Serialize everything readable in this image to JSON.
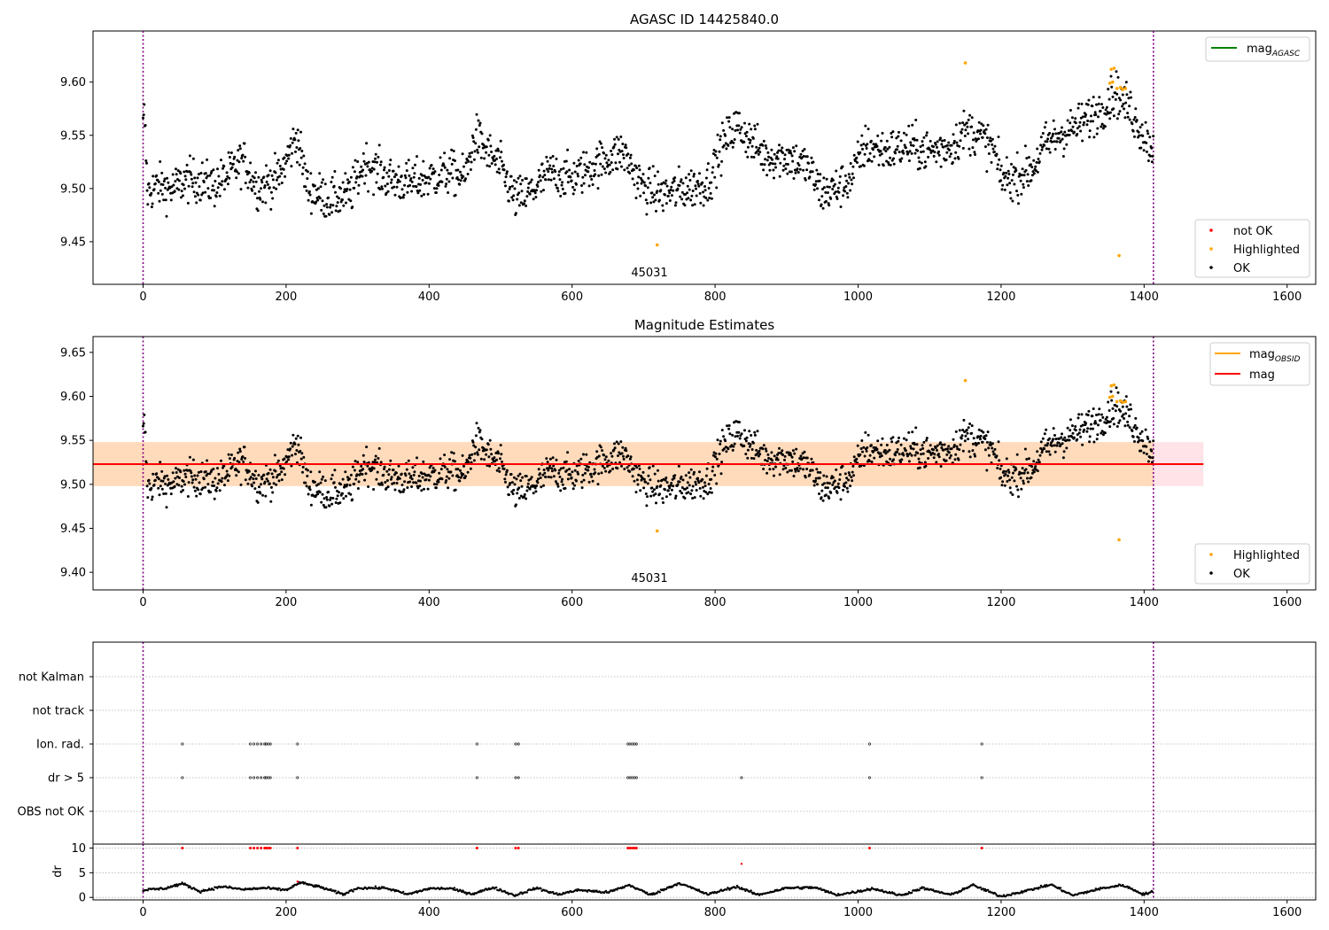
{
  "figure": {
    "colors": {
      "ok": "#000000",
      "highlighted": "#ffa500",
      "not_ok": "#ff0000",
      "agasc_line": "#008000",
      "obsid_line": "#ffa500",
      "mag_line": "#ff0000",
      "vline": "#800080",
      "band_outer": "#ffc0cb",
      "band_inner": "#ffd8b0"
    }
  },
  "chart_data": [
    {
      "type": "scatter",
      "title": "AGASC ID 14425840.0",
      "xlabel": "",
      "ylabel": "",
      "xlim": [
        -70,
        1640
      ],
      "ylim": [
        9.41,
        9.648
      ],
      "xticks": [
        "0",
        "200",
        "400",
        "600",
        "800",
        "1000",
        "1200",
        "1400",
        "1600"
      ],
      "yticks": [
        "9.45",
        "9.50",
        "9.55",
        "9.60"
      ],
      "grid": false,
      "vlines": [
        0,
        1413
      ],
      "annotation": {
        "text": "45031",
        "x": 706,
        "y": 9.414
      },
      "legend_lines": [
        {
          "label": "mag",
          "sub": "AGASC",
          "color": "#008000"
        }
      ],
      "legend_lines_position": "top-right",
      "legend_markers": [
        {
          "label": "not OK",
          "color": "#ff0000"
        },
        {
          "label": "Highlighted",
          "color": "#ffa500"
        },
        {
          "label": "OK",
          "color": "#000000"
        }
      ],
      "legend_markers_position": "bottom-right",
      "series": [
        {
          "name": "Highlighted",
          "points": [
            [
              719,
              9.447
            ],
            [
              1150,
              9.618
            ],
            [
              1352,
              9.599
            ],
            [
              1354,
              9.612
            ],
            [
              1356,
              9.6
            ],
            [
              1358,
              9.613
            ],
            [
              1362,
              9.594
            ],
            [
              1365,
              9.437
            ],
            [
              1367,
              9.595
            ],
            [
              1370,
              9.593
            ],
            [
              1374,
              9.594
            ]
          ]
        },
        {
          "name": "OK",
          "anchors": [
            [
              0,
              9.556
            ],
            [
              2,
              9.571
            ],
            [
              6,
              9.496
            ],
            [
              20,
              9.503
            ],
            [
              40,
              9.499
            ],
            [
              60,
              9.508
            ],
            [
              80,
              9.507
            ],
            [
              100,
              9.503
            ],
            [
              120,
              9.513
            ],
            [
              140,
              9.527
            ],
            [
              160,
              9.501
            ],
            [
              190,
              9.51
            ],
            [
              215,
              9.55
            ],
            [
              230,
              9.5
            ],
            [
              260,
              9.49
            ],
            [
              290,
              9.495
            ],
            [
              310,
              9.525
            ],
            [
              340,
              9.51
            ],
            [
              370,
              9.505
            ],
            [
              400,
              9.51
            ],
            [
              430,
              9.515
            ],
            [
              450,
              9.51
            ],
            [
              465,
              9.55
            ],
            [
              480,
              9.535
            ],
            [
              500,
              9.52
            ],
            [
              520,
              9.49
            ],
            [
              540,
              9.495
            ],
            [
              570,
              9.515
            ],
            [
              600,
              9.51
            ],
            [
              640,
              9.525
            ],
            [
              670,
              9.535
            ],
            [
              700,
              9.5
            ],
            [
              730,
              9.495
            ],
            [
              760,
              9.5
            ],
            [
              790,
              9.505
            ],
            [
              810,
              9.54
            ],
            [
              830,
              9.56
            ],
            [
              850,
              9.545
            ],
            [
              870,
              9.53
            ],
            [
              900,
              9.53
            ],
            [
              930,
              9.52
            ],
            [
              950,
              9.495
            ],
            [
              970,
              9.5
            ],
            [
              990,
              9.51
            ],
            [
              1010,
              9.54
            ],
            [
              1040,
              9.535
            ],
            [
              1070,
              9.54
            ],
            [
              1100,
              9.535
            ],
            [
              1130,
              9.54
            ],
            [
              1150,
              9.555
            ],
            [
              1170,
              9.55
            ],
            [
              1190,
              9.535
            ],
            [
              1200,
              9.51
            ],
            [
              1220,
              9.51
            ],
            [
              1245,
              9.52
            ],
            [
              1260,
              9.54
            ],
            [
              1280,
              9.55
            ],
            [
              1310,
              9.56
            ],
            [
              1340,
              9.575
            ],
            [
              1360,
              9.59
            ],
            [
              1380,
              9.575
            ],
            [
              1395,
              9.555
            ],
            [
              1405,
              9.545
            ],
            [
              1413,
              9.535
            ]
          ],
          "scatter": 0.014
        }
      ]
    },
    {
      "type": "scatter",
      "title": "Magnitude Estimates",
      "xlabel": "",
      "ylabel": "",
      "xlim": [
        -70,
        1640
      ],
      "ylim": [
        9.38,
        9.668
      ],
      "xticks": [
        "0",
        "200",
        "400",
        "600",
        "800",
        "1000",
        "1200",
        "1400",
        "1600"
      ],
      "yticks": [
        "9.40",
        "9.45",
        "9.50",
        "9.55",
        "9.60",
        "9.65"
      ],
      "grid": false,
      "vlines": [
        0,
        1413
      ],
      "hline": {
        "y": 9.523,
        "x": [
          -70,
          1483
        ],
        "color": "#ff0000"
      },
      "band": {
        "y": [
          9.498,
          9.548
        ],
        "x": [
          -70,
          1483
        ]
      },
      "annotation": {
        "text": "45031",
        "x": 706,
        "y": 9.385
      },
      "legend_lines": [
        {
          "label": "mag",
          "sub": "OBSID",
          "color": "#ffa500"
        },
        {
          "label": "mag",
          "sub": "",
          "color": "#ff0000"
        }
      ],
      "legend_lines_position": "top-right",
      "legend_markers": [
        {
          "label": "Highlighted",
          "color": "#ffa500"
        },
        {
          "label": "OK",
          "color": "#000000"
        }
      ],
      "legend_markers_position": "bottom-right"
    },
    {
      "type": "scatter",
      "title": "",
      "xlabel": "",
      "ylabel": "",
      "xlim": [
        -70,
        1640
      ],
      "categories": [
        "OBS not OK",
        "dr > 5",
        "Ion. rad.",
        "not track",
        "not Kalman"
      ],
      "grid": true,
      "vlines": [
        0,
        1413
      ],
      "flag_points": {
        "Ion. rad.": [
          55,
          150,
          155,
          160,
          165,
          170,
          172,
          175,
          178,
          216,
          467,
          521,
          525,
          678,
          681,
          684,
          687,
          690,
          1016,
          1173
        ],
        "dr > 5": [
          55,
          150,
          155,
          160,
          165,
          170,
          172,
          175,
          178,
          216,
          467,
          521,
          525,
          678,
          681,
          684,
          687,
          690,
          837,
          1016,
          1173
        ]
      }
    },
    {
      "type": "scatter",
      "title": "",
      "xlabel": "",
      "ylabel": "dr",
      "xlim": [
        -70,
        1640
      ],
      "ylim": [
        -0.5,
        10.8
      ],
      "xticks": [
        "0",
        "200",
        "400",
        "600",
        "800",
        "1000",
        "1200",
        "1400",
        "1600"
      ],
      "yticks": [
        "0",
        "5",
        "10"
      ],
      "grid": true,
      "vlines": [
        0,
        1413
      ],
      "red_at_10": [
        55,
        150,
        155,
        160,
        165,
        170,
        172,
        175,
        178,
        216,
        467,
        521,
        525,
        678,
        681,
        684,
        687,
        690,
        1016,
        1173
      ],
      "red_other": [
        [
          837,
          6.8
        ],
        [
          216,
          3.2
        ]
      ],
      "black_anchors": [
        [
          0,
          1.5
        ],
        [
          30,
          1.8
        ],
        [
          55,
          2.8
        ],
        [
          80,
          1.2
        ],
        [
          110,
          2.2
        ],
        [
          140,
          1.6
        ],
        [
          170,
          1.9
        ],
        [
          200,
          1.5
        ],
        [
          220,
          3.0
        ],
        [
          250,
          2.0
        ],
        [
          280,
          0.6
        ],
        [
          300,
          1.9
        ],
        [
          340,
          1.9
        ],
        [
          370,
          0.6
        ],
        [
          400,
          1.8
        ],
        [
          430,
          1.8
        ],
        [
          460,
          0.7
        ],
        [
          490,
          2.0
        ],
        [
          520,
          0.4
        ],
        [
          550,
          1.9
        ],
        [
          580,
          0.6
        ],
        [
          610,
          1.5
        ],
        [
          650,
          1.0
        ],
        [
          680,
          2.5
        ],
        [
          710,
          0.5
        ],
        [
          750,
          2.9
        ],
        [
          790,
          0.6
        ],
        [
          830,
          2.2
        ],
        [
          860,
          0.5
        ],
        [
          900,
          1.9
        ],
        [
          940,
          2.0
        ],
        [
          970,
          0.5
        ],
        [
          1000,
          1.2
        ],
        [
          1020,
          1.8
        ],
        [
          1060,
          0.4
        ],
        [
          1090,
          1.9
        ],
        [
          1130,
          0.5
        ],
        [
          1160,
          2.5
        ],
        [
          1200,
          0.2
        ],
        [
          1240,
          1.5
        ],
        [
          1270,
          2.6
        ],
        [
          1300,
          0.4
        ],
        [
          1340,
          1.8
        ],
        [
          1370,
          2.5
        ],
        [
          1400,
          0.6
        ],
        [
          1413,
          1.3
        ]
      ]
    }
  ]
}
